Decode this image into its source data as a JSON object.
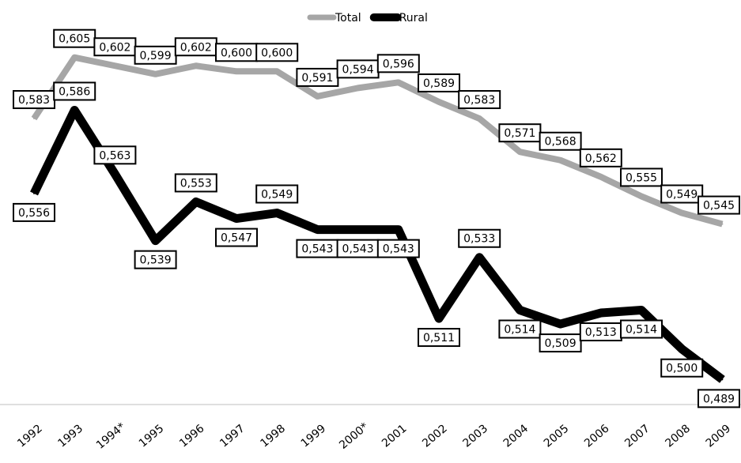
{
  "chart_data": {
    "type": "line",
    "categories": [
      "1992",
      "1993",
      "1994*",
      "1995",
      "1996",
      "1997",
      "1998",
      "1999",
      "2000*",
      "2001",
      "2002",
      "2003",
      "2004",
      "2005",
      "2006",
      "2007",
      "2008",
      "2009"
    ],
    "series": [
      {
        "name": "Total",
        "color": "#a6a6a6",
        "values": [
          0.583,
          0.605,
          0.602,
          0.599,
          0.602,
          0.6,
          0.6,
          0.591,
          0.594,
          0.596,
          0.589,
          0.583,
          0.571,
          0.568,
          0.562,
          0.555,
          0.549,
          0.545
        ],
        "value_labels": [
          "0,583",
          "0,605",
          "0,602",
          "0,599",
          "0,602",
          "0,600",
          "0,600",
          "0,591",
          "0,594",
          "0,596",
          "0,589",
          "0,583",
          "0,571",
          "0,568",
          "0,562",
          "0,555",
          "0,549",
          "0,545"
        ]
      },
      {
        "name": "Rural",
        "color": "#000000",
        "values": [
          0.556,
          0.586,
          0.563,
          0.539,
          0.553,
          0.547,
          0.549,
          0.543,
          0.543,
          0.543,
          0.511,
          0.533,
          0.514,
          0.509,
          0.513,
          0.514,
          0.5,
          0.489
        ],
        "value_labels": [
          "0,556",
          "0,586",
          "0,563",
          "0,539",
          "0,553",
          "0,547",
          "0,549",
          "0,543",
          "0,543",
          "0,543",
          "0,511",
          "0,533",
          "0,514",
          "0,509",
          "0,513",
          "0,514",
          "0,500",
          "0,489"
        ]
      }
    ],
    "ylim": [
      0.48,
      0.62
    ],
    "legend": "top"
  }
}
